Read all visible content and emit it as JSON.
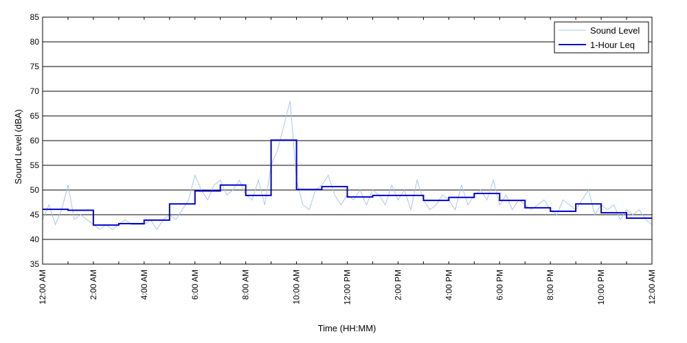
{
  "chart_data": {
    "type": "line",
    "title": "",
    "xlabel": "Time (HH:MM)",
    "ylabel": "Sound Level (dBA)",
    "ylim": [
      35,
      85
    ],
    "yticks": [
      35,
      40,
      45,
      50,
      55,
      60,
      65,
      70,
      75,
      80,
      85
    ],
    "xlim_hours": [
      0,
      24
    ],
    "xticks": [
      {
        "hour": 0,
        "label": "12:00 AM"
      },
      {
        "hour": 2,
        "label": "2:00 AM"
      },
      {
        "hour": 4,
        "label": "4:00 AM"
      },
      {
        "hour": 6,
        "label": "6:00 AM"
      },
      {
        "hour": 8,
        "label": "8:00 AM"
      },
      {
        "hour": 10,
        "label": "10:00 AM"
      },
      {
        "hour": 12,
        "label": "12:00 PM"
      },
      {
        "hour": 14,
        "label": "2:00 PM"
      },
      {
        "hour": 16,
        "label": "4:00 PM"
      },
      {
        "hour": 18,
        "label": "6:00 PM"
      },
      {
        "hour": 20,
        "label": "8:00 PM"
      },
      {
        "hour": 22,
        "label": "10:00 PM"
      },
      {
        "hour": 24,
        "label": "12:00 AM"
      }
    ],
    "grid": "horizontal",
    "legend": {
      "position": "top-right",
      "entries": [
        {
          "name": "Sound Level",
          "color": "#aac4f2"
        },
        {
          "name": "1-Hour Leq",
          "color": "#0000c8"
        }
      ]
    },
    "series": [
      {
        "name": "Sound Level",
        "kind": "raw",
        "color": "#aac4f2",
        "x_hours": [
          0,
          0.25,
          0.5,
          0.75,
          1,
          1.25,
          1.5,
          1.75,
          2,
          2.25,
          2.5,
          2.75,
          3,
          3.25,
          3.5,
          3.75,
          4,
          4.25,
          4.5,
          4.75,
          5,
          5.25,
          5.5,
          5.75,
          6,
          6.25,
          6.5,
          6.75,
          7,
          7.25,
          7.5,
          7.75,
          8,
          8.25,
          8.5,
          8.75,
          9,
          9.25,
          9.5,
          9.75,
          10,
          10.25,
          10.5,
          10.75,
          11,
          11.25,
          11.5,
          11.75,
          12,
          12.25,
          12.5,
          12.75,
          13,
          13.25,
          13.5,
          13.75,
          14,
          14.25,
          14.5,
          14.75,
          15,
          15.25,
          15.5,
          15.75,
          16,
          16.25,
          16.5,
          16.75,
          17,
          17.25,
          17.5,
          17.75,
          18,
          18.25,
          18.5,
          18.75,
          19,
          19.25,
          19.5,
          19.75,
          20,
          20.25,
          20.5,
          20.75,
          21,
          21.25,
          21.5,
          21.75,
          22,
          22.25,
          22.5,
          22.75,
          23,
          23.25,
          23.5,
          23.75,
          24
        ],
        "values": [
          44,
          47,
          43,
          46,
          51,
          44,
          45,
          44,
          43,
          42,
          43,
          42,
          43,
          44,
          43,
          43,
          43,
          44,
          42,
          44,
          45,
          44,
          46,
          48,
          53,
          50,
          48,
          51,
          52,
          49,
          50,
          52,
          49,
          48,
          52,
          47,
          55,
          58,
          63,
          68,
          52,
          47,
          46,
          50,
          51,
          53,
          49,
          47,
          49,
          48,
          50,
          47,
          50,
          49,
          47,
          51,
          48,
          50,
          46,
          52,
          48,
          46,
          47,
          49,
          48,
          46,
          51,
          47,
          49,
          50,
          48,
          52,
          47,
          49,
          46,
          48,
          47,
          46,
          47,
          48,
          46,
          45,
          48,
          47,
          46,
          48,
          50,
          45,
          47,
          46,
          47,
          44,
          46,
          45,
          46,
          44,
          43
        ]
      },
      {
        "name": "1-Hour Leq",
        "kind": "step",
        "color": "#0000c8",
        "x_hours": [
          0,
          1,
          2,
          3,
          4,
          5,
          6,
          7,
          8,
          9,
          10,
          11,
          12,
          13,
          14,
          15,
          16,
          17,
          18,
          19,
          20,
          21,
          22,
          23
        ],
        "values": [
          46.1,
          45.9,
          42.9,
          43.2,
          43.9,
          47.2,
          49.8,
          51.0,
          48.9,
          60.1,
          50.1,
          50.7,
          48.6,
          48.9,
          48.9,
          47.9,
          48.5,
          49.3,
          47.9,
          46.4,
          45.7,
          47.2,
          45.4,
          44.3
        ]
      }
    ]
  }
}
